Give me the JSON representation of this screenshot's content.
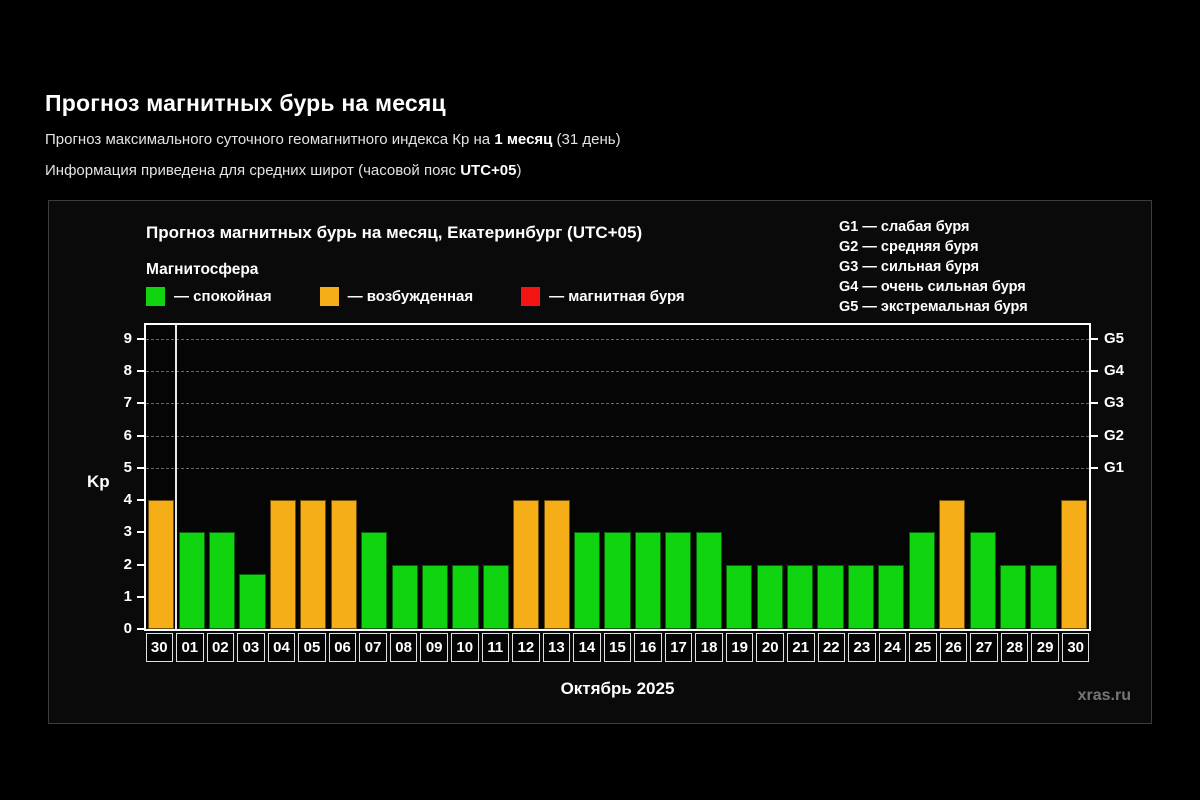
{
  "page": {
    "title": "Прогноз магнитных бурь на месяц",
    "subtitle1": {
      "prefix": "Прогноз максимального суточного геомагнитного индекса Кр на ",
      "bold": "1 месяц",
      "suffix": " (31 день)"
    },
    "subtitle2": {
      "prefix": "Информация приведена для средних широт (часовой пояс ",
      "bold": "UTC+05",
      "suffix": ")"
    }
  },
  "chart": {
    "title": "Прогноз магнитных бурь на месяц, Екатеринбург (UTC+05)",
    "legend_title": "Магнитосфера",
    "legend": [
      {
        "status": "quiet",
        "label": "— спокойная",
        "color": "#0fd40f"
      },
      {
        "status": "excited",
        "label": "— возбужденная",
        "color": "#f5ae17"
      },
      {
        "status": "storm",
        "label": "— магнитная буря",
        "color": "#f51414"
      }
    ],
    "g_legend": [
      {
        "code": "G1",
        "label": "— слабая буря"
      },
      {
        "code": "G2",
        "label": "— средняя буря"
      },
      {
        "code": "G3",
        "label": "— сильная буря"
      },
      {
        "code": "G4",
        "label": "— очень сильная буря"
      },
      {
        "code": "G5",
        "label": "— экстремальная буря"
      }
    ],
    "watermark": "xras.ru"
  },
  "chart_data": {
    "type": "bar",
    "title": "Прогноз магнитных бурь на месяц, Екатеринбург (UTC+05)",
    "xlabel": "Октябрь 2025",
    "ylabel": "Kp",
    "ylim": [
      0,
      9.4
    ],
    "yticks": [
      0,
      1,
      2,
      3,
      4,
      5,
      6,
      7,
      8,
      9
    ],
    "grid_dashed_at": [
      5,
      6,
      7,
      8,
      9
    ],
    "right_axis_labels": [
      {
        "kp": 9,
        "label": "G5"
      },
      {
        "kp": 8,
        "label": "G4"
      },
      {
        "kp": 7,
        "label": "G3"
      },
      {
        "kp": 6,
        "label": "G2"
      },
      {
        "kp": 5,
        "label": "G1"
      }
    ],
    "legend_position": "top",
    "separator_after_index": 0,
    "categories": [
      "30",
      "01",
      "02",
      "03",
      "04",
      "05",
      "06",
      "07",
      "08",
      "09",
      "10",
      "11",
      "12",
      "13",
      "14",
      "15",
      "16",
      "17",
      "18",
      "19",
      "20",
      "21",
      "22",
      "23",
      "24",
      "25",
      "26",
      "27",
      "28",
      "29",
      "30"
    ],
    "values": [
      4,
      3,
      3,
      1.7,
      4,
      4,
      4,
      3,
      2,
      2,
      2,
      2,
      4,
      4,
      3,
      3,
      3,
      3,
      3,
      2,
      2,
      2,
      2,
      2,
      2,
      3,
      4,
      3,
      2,
      2,
      4
    ],
    "statuses": [
      "excited",
      "quiet",
      "quiet",
      "quiet",
      "excited",
      "excited",
      "excited",
      "quiet",
      "quiet",
      "quiet",
      "quiet",
      "quiet",
      "excited",
      "excited",
      "quiet",
      "quiet",
      "quiet",
      "quiet",
      "quiet",
      "quiet",
      "quiet",
      "quiet",
      "quiet",
      "quiet",
      "quiet",
      "quiet",
      "excited",
      "quiet",
      "quiet",
      "quiet",
      "excited"
    ]
  }
}
